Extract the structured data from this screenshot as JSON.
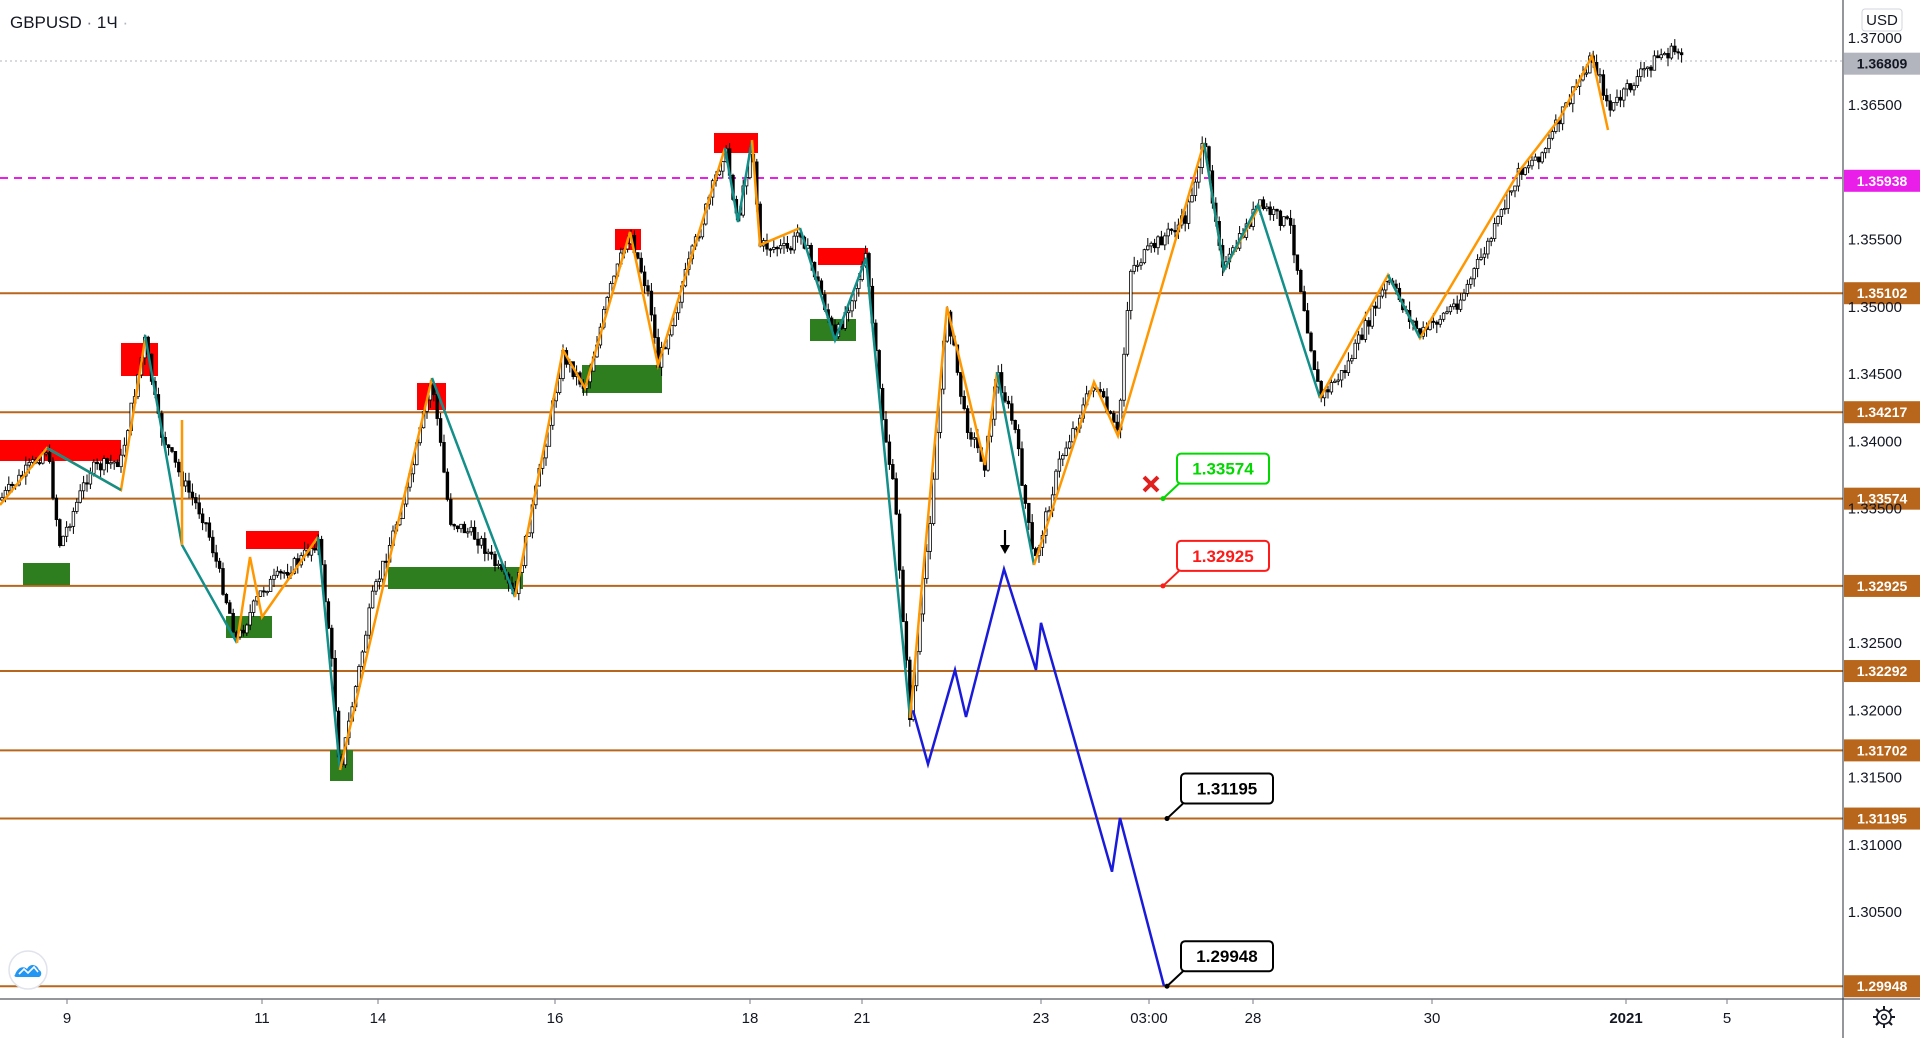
{
  "header": {
    "symbol": "GBPUSD",
    "timeframe": "1Ч"
  },
  "price_axis": {
    "currency": "USD",
    "ticks": [
      "1.37000",
      "1.36500",
      "1.35500",
      "1.35000",
      "1.34500",
      "1.34000",
      "1.33500",
      "1.32500",
      "1.32000",
      "1.31500",
      "1.31000",
      "1.30500"
    ]
  },
  "time_axis": {
    "labels": [
      "9",
      "11",
      "14",
      "16",
      "18",
      "21",
      "23",
      "03:00",
      "28",
      "30",
      "2021",
      "5"
    ]
  },
  "current_price": {
    "label": "1.36809",
    "color": "#b2b5be"
  },
  "magenta_level": {
    "label": "1.35938",
    "color": "#e91ee9"
  },
  "levels": [
    {
      "label": "1.35102",
      "price": 1.35102
    },
    {
      "label": "1.34217",
      "price": 1.34217
    },
    {
      "label": "1.33574",
      "price": 1.33574
    },
    {
      "label": "1.32925",
      "price": 1.32925
    },
    {
      "label": "1.32292",
      "price": 1.32292
    },
    {
      "label": "1.31702",
      "price": 1.31702
    },
    {
      "label": "1.31195",
      "price": 1.31195
    },
    {
      "label": "1.29948",
      "price": 1.29948
    }
  ],
  "callouts": [
    {
      "label": "1.33574",
      "color": "#00d800",
      "price": 1.33574
    },
    {
      "label": "1.32925",
      "color": "#ff1a1a",
      "price": 1.32925
    },
    {
      "label": "1.31195",
      "color": "#000000",
      "price": 1.31195
    },
    {
      "label": "1.29948",
      "color": "#000000",
      "price": 1.29948
    }
  ],
  "icons": [
    "cross-icon",
    "down-arrow-icon",
    "logo-icon",
    "settings-gear-icon"
  ],
  "colors": {
    "level_line": "#b8661b",
    "up_swing": "#ff9800",
    "down_swing": "#138f8a",
    "projection": "#1a1adb",
    "supply_zone": "#ff0000",
    "demand_zone": "#2e7d1e",
    "candle": "#000000"
  },
  "chart_data": {
    "type": "candlestick",
    "symbol": "GBPUSD",
    "timeframe": "1Ч",
    "ylim": [
      1.298,
      1.372
    ],
    "horizontal_levels": [
      1.35102,
      1.34217,
      1.33574,
      1.32925,
      1.32292,
      1.31702,
      1.31195,
      1.29948
    ],
    "dashed_level": 1.35938,
    "last_price": 1.36809,
    "projection_path": [
      1.32,
      1.316,
      1.323,
      1.3195,
      1.3305,
      1.323,
      1.3265,
      1.308,
      1.312,
      1.2995
    ],
    "grid": false
  }
}
